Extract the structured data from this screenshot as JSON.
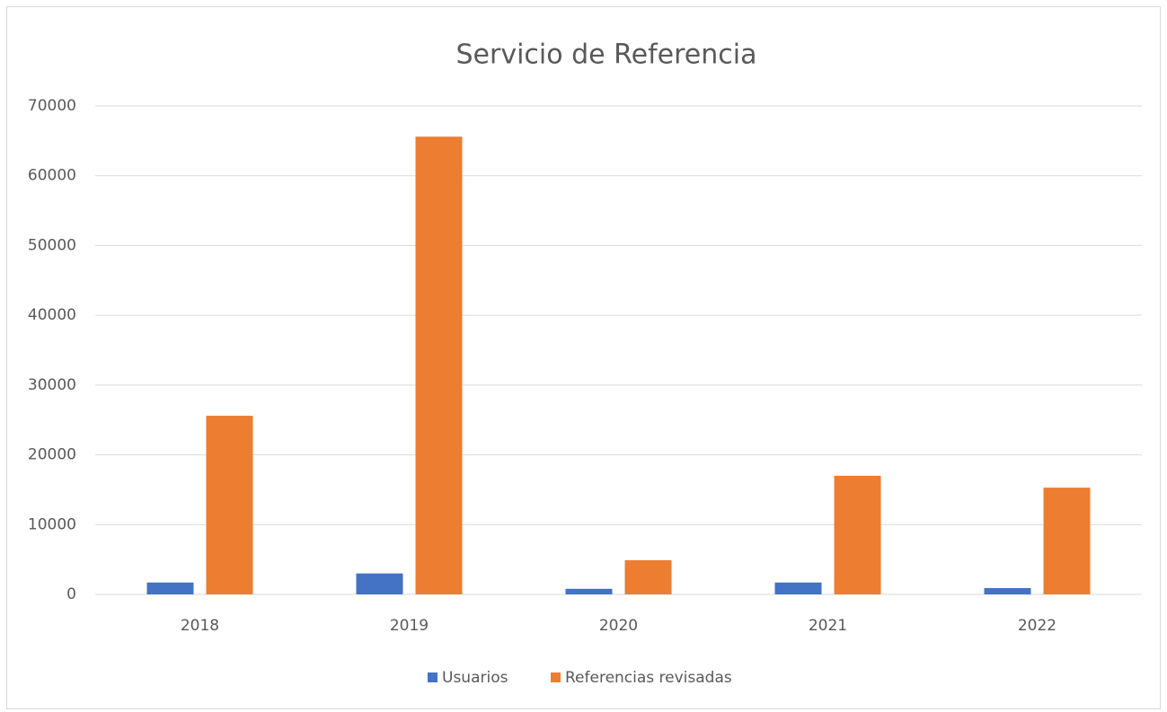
{
  "chart_data": {
    "type": "bar",
    "title": "Servicio de Referencia",
    "categories": [
      "2018",
      "2019",
      "2020",
      "2021",
      "2022"
    ],
    "series": [
      {
        "name": "Usuarios",
        "color": "#4472c4",
        "values": [
          1700,
          3000,
          800,
          1700,
          900
        ]
      },
      {
        "name": "Referencias revisadas",
        "color": "#ed7d31",
        "values": [
          25600,
          65600,
          4900,
          17000,
          15300
        ]
      }
    ],
    "ylim": [
      0,
      70000
    ],
    "yticks": [
      0,
      10000,
      20000,
      30000,
      40000,
      50000,
      60000,
      70000
    ],
    "grid": true,
    "legend": "bottom"
  }
}
